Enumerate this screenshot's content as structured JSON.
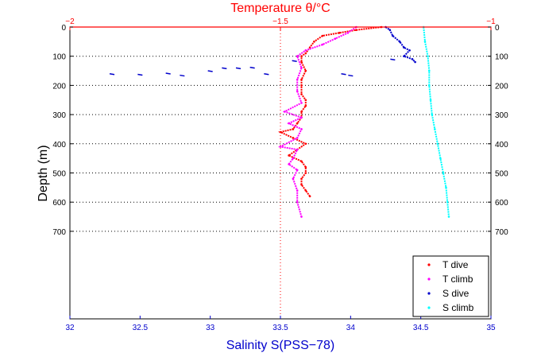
{
  "chart_data": {
    "type": "scatter",
    "top_axis": {
      "label": "Temperature θ/°C",
      "range": [
        -2,
        -1
      ],
      "ticks": [
        -2,
        -1.5,
        -1
      ],
      "tick_labels": [
        "−2",
        "−1.5",
        "−1"
      ],
      "color": "#ff0000"
    },
    "bottom_axis": {
      "label": "Salinity S(PSS−78)",
      "range": [
        32,
        35
      ],
      "ticks": [
        32,
        32.5,
        33,
        33.5,
        34,
        34.5,
        35
      ],
      "tick_labels": [
        "32",
        "32.5",
        "33",
        "33.5",
        "34",
        "34.5",
        "35"
      ],
      "color": "#0000cc"
    },
    "y_axis": {
      "label": "Depth (m)",
      "range": [
        0,
        1000
      ],
      "reversed": true,
      "ticks": [
        0,
        100,
        200,
        300,
        400,
        500,
        600,
        700
      ],
      "tick_labels": [
        "0",
        "100",
        "200",
        "300",
        "400",
        "500",
        "600",
        "700"
      ]
    },
    "grid": "dotted",
    "legend": {
      "placement": "bottom-right",
      "entries": [
        {
          "name": "T dive",
          "color": "#ff0000"
        },
        {
          "name": "T climb",
          "color": "#ff00ff"
        },
        {
          "name": "S dive",
          "color": "#0000cc"
        },
        {
          "name": "S climb",
          "color": "#00ffff"
        }
      ]
    },
    "series": [
      {
        "name": "T dive",
        "axis": "temperature",
        "color": "#ff0000",
        "depth": [
          0,
          10,
          20,
          30,
          50,
          70,
          90,
          100,
          120,
          150,
          180,
          200,
          230,
          250,
          270,
          290,
          310,
          330,
          350,
          360,
          380,
          400,
          420,
          440,
          460,
          480,
          500,
          520,
          540,
          560,
          580
        ],
        "value": [
          -1.26,
          -1.32,
          -1.36,
          -1.4,
          -1.42,
          -1.43,
          -1.44,
          -1.45,
          -1.45,
          -1.44,
          -1.45,
          -1.45,
          -1.45,
          -1.44,
          -1.44,
          -1.45,
          -1.45,
          -1.46,
          -1.47,
          -1.5,
          -1.47,
          -1.44,
          -1.46,
          -1.48,
          -1.45,
          -1.44,
          -1.44,
          -1.45,
          -1.45,
          -1.44,
          -1.43
        ]
      },
      {
        "name": "T climb",
        "axis": "temperature",
        "color": "#ff00ff",
        "depth": [
          0,
          20,
          40,
          60,
          80,
          100,
          140,
          180,
          220,
          260,
          290,
          310,
          330,
          350,
          380,
          410,
          420,
          450,
          470,
          490,
          520,
          560,
          600,
          650
        ],
        "value": [
          -1.32,
          -1.34,
          -1.37,
          -1.4,
          -1.44,
          -1.46,
          -1.45,
          -1.46,
          -1.46,
          -1.45,
          -1.49,
          -1.45,
          -1.48,
          -1.45,
          -1.46,
          -1.5,
          -1.46,
          -1.47,
          -1.48,
          -1.46,
          -1.47,
          -1.46,
          -1.46,
          -1.45
        ]
      },
      {
        "name": "S dive",
        "axis": "salinity",
        "color": "#0000cc",
        "depth": [
          0,
          10,
          30,
          50,
          70,
          80,
          100,
          110,
          120
        ],
        "value": [
          34.25,
          34.28,
          34.3,
          34.35,
          34.38,
          34.42,
          34.38,
          34.44,
          34.46
        ],
        "scatter_depth": [
          160,
          162,
          158,
          165,
          150,
          140,
          140,
          138,
          160,
          160,
          165,
          115,
          110
        ],
        "scatter_value": [
          32.3,
          32.5,
          32.7,
          32.8,
          33.0,
          33.1,
          33.2,
          33.3,
          33.4,
          33.95,
          34.0,
          33.6,
          34.3
        ]
      },
      {
        "name": "S climb",
        "axis": "salinity",
        "color": "#00ffff",
        "depth": [
          0,
          50,
          100,
          150,
          200,
          250,
          300,
          350,
          400,
          450,
          500,
          550,
          600,
          650
        ],
        "value": [
          34.52,
          34.53,
          34.55,
          34.56,
          34.56,
          34.57,
          34.58,
          34.6,
          34.62,
          34.64,
          34.66,
          34.68,
          34.69,
          34.7
        ]
      }
    ]
  }
}
